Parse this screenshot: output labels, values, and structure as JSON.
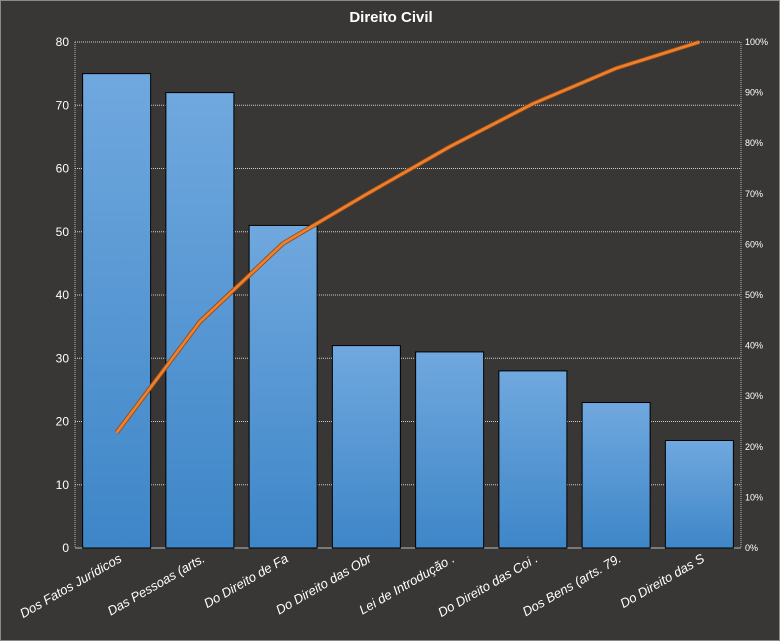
{
  "chart_data": {
    "type": "bar",
    "title": "Direito  Civil",
    "categories": [
      "Dos Fatos Jurídicos",
      "Das Pessoas (arts.",
      "Do Direito de Fa",
      "Do Direito das Obr",
      "Lei de Introdução  .",
      "Do Direito das Coi .",
      "Dos Bens (arts. 79.",
      "Do Direito das S"
    ],
    "series": [
      {
        "type": "bar",
        "axis": "left",
        "values": [
          75,
          72,
          51,
          32,
          31,
          28,
          23,
          17
        ],
        "color": "#5b9bd5"
      },
      {
        "type": "line",
        "axis": "right",
        "values": [
          22.8,
          44.7,
          60.2,
          69.9,
          79.3,
          87.8,
          94.8,
          100
        ],
        "color": "#ed7d31"
      }
    ],
    "ylim": [
      0,
      80
    ],
    "yticks": [
      "0",
      "10",
      "20",
      "30",
      "40",
      "50",
      "60",
      "70",
      "80"
    ],
    "y2lim": [
      0,
      100
    ],
    "y2ticks": [
      "0%",
      "10%",
      "20%",
      "30%",
      "40%",
      "50%",
      "60%",
      "70%",
      "80%",
      "90%",
      "100%"
    ],
    "grid": true,
    "legend": "none"
  }
}
